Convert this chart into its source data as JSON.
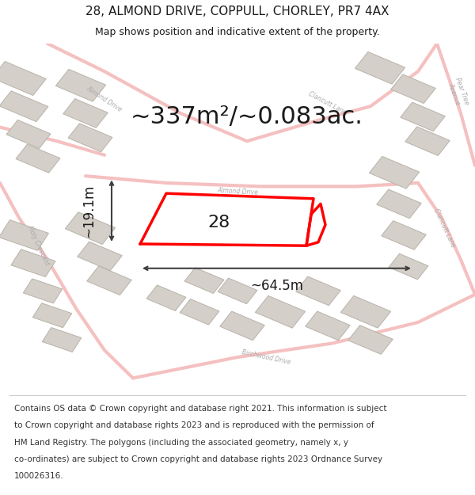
{
  "title": "28, ALMOND DRIVE, COPPULL, CHORLEY, PR7 4AX",
  "subtitle": "Map shows position and indicative extent of the property.",
  "area_text": "~337m²/~0.083ac.",
  "width_label": "~64.5m",
  "height_label": "~19.1m",
  "property_number": "28",
  "footer_lines": [
    "Contains OS data © Crown copyright and database right 2021. This information is subject",
    "to Crown copyright and database rights 2023 and is reproduced with the permission of",
    "HM Land Registry. The polygons (including the associated geometry, namely x, y",
    "co-ordinates) are subject to Crown copyright and database rights 2023 Ordnance Survey",
    "100026316."
  ],
  "map_bg_color": "#f0ede8",
  "building_color": "#d4cfc8",
  "building_outline": "#b8b2aa",
  "road_color_main": "#f5c0c0",
  "property_outline_color": "#ff0000",
  "dimension_line_color": "#404040",
  "text_color": "#1a1a1a",
  "footer_bg": "#ffffff",
  "header_bg": "#ffffff",
  "title_fontsize": 11,
  "subtitle_fontsize": 9,
  "area_fontsize": 22,
  "footer_fontsize": 7.5,
  "road_label_color": "#aaaaaa",
  "road_label_fontsize": 5.5
}
